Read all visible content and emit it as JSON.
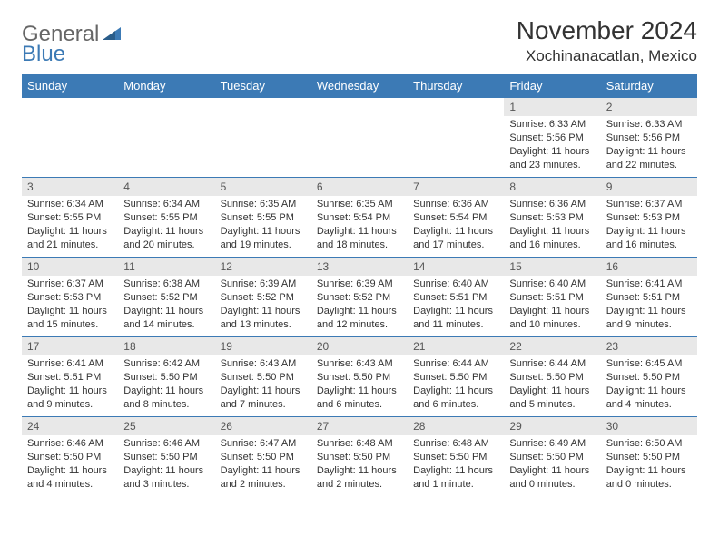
{
  "logo": {
    "gray": "General",
    "blue": "Blue"
  },
  "title": "November 2024",
  "location": "Xochinanacatlan, Mexico",
  "colors": {
    "header_bg": "#3c7ab5",
    "header_fg": "#ffffff",
    "daynum_bg": "#e8e8e8",
    "border": "#3c7ab5",
    "text": "#333333",
    "logo_gray": "#666666",
    "logo_blue": "#3c7ab5",
    "page_bg": "#ffffff"
  },
  "weekdays": [
    "Sunday",
    "Monday",
    "Tuesday",
    "Wednesday",
    "Thursday",
    "Friday",
    "Saturday"
  ],
  "weeks": [
    [
      null,
      null,
      null,
      null,
      null,
      {
        "n": "1",
        "sr": "6:33 AM",
        "ss": "5:56 PM",
        "dl": "11 hours and 23 minutes."
      },
      {
        "n": "2",
        "sr": "6:33 AM",
        "ss": "5:56 PM",
        "dl": "11 hours and 22 minutes."
      }
    ],
    [
      {
        "n": "3",
        "sr": "6:34 AM",
        "ss": "5:55 PM",
        "dl": "11 hours and 21 minutes."
      },
      {
        "n": "4",
        "sr": "6:34 AM",
        "ss": "5:55 PM",
        "dl": "11 hours and 20 minutes."
      },
      {
        "n": "5",
        "sr": "6:35 AM",
        "ss": "5:55 PM",
        "dl": "11 hours and 19 minutes."
      },
      {
        "n": "6",
        "sr": "6:35 AM",
        "ss": "5:54 PM",
        "dl": "11 hours and 18 minutes."
      },
      {
        "n": "7",
        "sr": "6:36 AM",
        "ss": "5:54 PM",
        "dl": "11 hours and 17 minutes."
      },
      {
        "n": "8",
        "sr": "6:36 AM",
        "ss": "5:53 PM",
        "dl": "11 hours and 16 minutes."
      },
      {
        "n": "9",
        "sr": "6:37 AM",
        "ss": "5:53 PM",
        "dl": "11 hours and 16 minutes."
      }
    ],
    [
      {
        "n": "10",
        "sr": "6:37 AM",
        "ss": "5:53 PM",
        "dl": "11 hours and 15 minutes."
      },
      {
        "n": "11",
        "sr": "6:38 AM",
        "ss": "5:52 PM",
        "dl": "11 hours and 14 minutes."
      },
      {
        "n": "12",
        "sr": "6:39 AM",
        "ss": "5:52 PM",
        "dl": "11 hours and 13 minutes."
      },
      {
        "n": "13",
        "sr": "6:39 AM",
        "ss": "5:52 PM",
        "dl": "11 hours and 12 minutes."
      },
      {
        "n": "14",
        "sr": "6:40 AM",
        "ss": "5:51 PM",
        "dl": "11 hours and 11 minutes."
      },
      {
        "n": "15",
        "sr": "6:40 AM",
        "ss": "5:51 PM",
        "dl": "11 hours and 10 minutes."
      },
      {
        "n": "16",
        "sr": "6:41 AM",
        "ss": "5:51 PM",
        "dl": "11 hours and 9 minutes."
      }
    ],
    [
      {
        "n": "17",
        "sr": "6:41 AM",
        "ss": "5:51 PM",
        "dl": "11 hours and 9 minutes."
      },
      {
        "n": "18",
        "sr": "6:42 AM",
        "ss": "5:50 PM",
        "dl": "11 hours and 8 minutes."
      },
      {
        "n": "19",
        "sr": "6:43 AM",
        "ss": "5:50 PM",
        "dl": "11 hours and 7 minutes."
      },
      {
        "n": "20",
        "sr": "6:43 AM",
        "ss": "5:50 PM",
        "dl": "11 hours and 6 minutes."
      },
      {
        "n": "21",
        "sr": "6:44 AM",
        "ss": "5:50 PM",
        "dl": "11 hours and 6 minutes."
      },
      {
        "n": "22",
        "sr": "6:44 AM",
        "ss": "5:50 PM",
        "dl": "11 hours and 5 minutes."
      },
      {
        "n": "23",
        "sr": "6:45 AM",
        "ss": "5:50 PM",
        "dl": "11 hours and 4 minutes."
      }
    ],
    [
      {
        "n": "24",
        "sr": "6:46 AM",
        "ss": "5:50 PM",
        "dl": "11 hours and 4 minutes."
      },
      {
        "n": "25",
        "sr": "6:46 AM",
        "ss": "5:50 PM",
        "dl": "11 hours and 3 minutes."
      },
      {
        "n": "26",
        "sr": "6:47 AM",
        "ss": "5:50 PM",
        "dl": "11 hours and 2 minutes."
      },
      {
        "n": "27",
        "sr": "6:48 AM",
        "ss": "5:50 PM",
        "dl": "11 hours and 2 minutes."
      },
      {
        "n": "28",
        "sr": "6:48 AM",
        "ss": "5:50 PM",
        "dl": "11 hours and 1 minute."
      },
      {
        "n": "29",
        "sr": "6:49 AM",
        "ss": "5:50 PM",
        "dl": "11 hours and 0 minutes."
      },
      {
        "n": "30",
        "sr": "6:50 AM",
        "ss": "5:50 PM",
        "dl": "11 hours and 0 minutes."
      }
    ]
  ],
  "labels": {
    "sunrise": "Sunrise: ",
    "sunset": "Sunset: ",
    "daylight": "Daylight: "
  }
}
